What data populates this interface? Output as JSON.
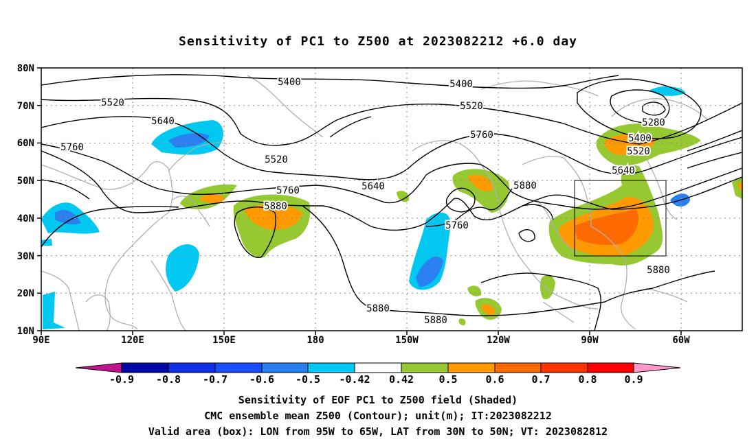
{
  "title": "Sensitivity of PC1 to Z500 at 2023082212 +6.0 day",
  "lat_labels": [
    "80N",
    "70N",
    "60N",
    "50N",
    "40N",
    "30N",
    "20N",
    "10N"
  ],
  "lon_labels": [
    "90E",
    "120E",
    "150E",
    "180",
    "150W",
    "120W",
    "90W",
    "60W"
  ],
  "contour_labels": [
    "5400",
    "5400",
    "5520",
    "5520",
    "5520",
    "5640",
    "5640",
    "5760",
    "5760",
    "5760",
    "5760",
    "5880",
    "5880",
    "5880",
    "5880",
    "5880",
    "5280",
    "5400",
    "5520",
    "5640"
  ],
  "colorbar": {
    "ticks": [
      "-0.9",
      "-0.8",
      "-0.7",
      "-0.6",
      "-0.5",
      "-0.42",
      "0.42",
      "0.5",
      "0.6",
      "0.7",
      "0.8",
      "0.9"
    ],
    "colors": [
      "#c0158f",
      "#0008a8",
      "#1030e8",
      "#1a50ff",
      "#2a80f0",
      "#00c8f0",
      "#ffffff",
      "#96c832",
      "#ff9900",
      "#ff6a00",
      "#ff3300",
      "#ff0000",
      "#ff99cc"
    ]
  },
  "captions": [
    "Sensitivity of EOF PC1 to Z500 field (Shaded)",
    "CMC ensemble mean Z500 (Contour); unit(m); IT:2023082212",
    "Valid area (box): LON from 95W to 65W, LAT from 30N to 50N; VT: 2023082812"
  ]
}
